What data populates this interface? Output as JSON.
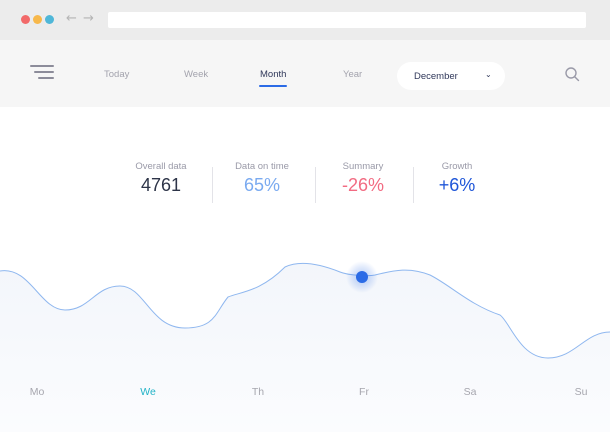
{
  "browser": {
    "buttons": [
      "close",
      "minimize",
      "maximize"
    ],
    "nav_icons": {
      "back": "arrow-left-icon",
      "forward": "arrow-right-icon"
    },
    "url": ""
  },
  "toolbar": {
    "menu_icon": "hamburger-menu-icon",
    "tabs": [
      {
        "label": "Today"
      },
      {
        "label": "Week"
      },
      {
        "label": "Month"
      },
      {
        "label": "Year"
      }
    ],
    "active_tab": "Month",
    "period_select": {
      "value": "December"
    },
    "search_icon": "search-icon"
  },
  "stats": [
    {
      "label": "Overall data",
      "value": "4761"
    },
    {
      "label": "Data on time",
      "value": "65%"
    },
    {
      "label": "Summary",
      "value": "-26%"
    },
    {
      "label": "Growth",
      "value": "+6%"
    }
  ],
  "colors": {
    "accent": "#2b6be6",
    "line": "#8fb7ef",
    "summary_negative": "#f26b82",
    "growth_positive": "#1f56d8",
    "active_day": "#22b3c7"
  },
  "days": [
    {
      "label": "Mo"
    },
    {
      "label": "We"
    },
    {
      "label": "Th"
    },
    {
      "label": "Fr"
    },
    {
      "label": "Sa"
    },
    {
      "label": "Su"
    }
  ],
  "active_day": "We"
}
